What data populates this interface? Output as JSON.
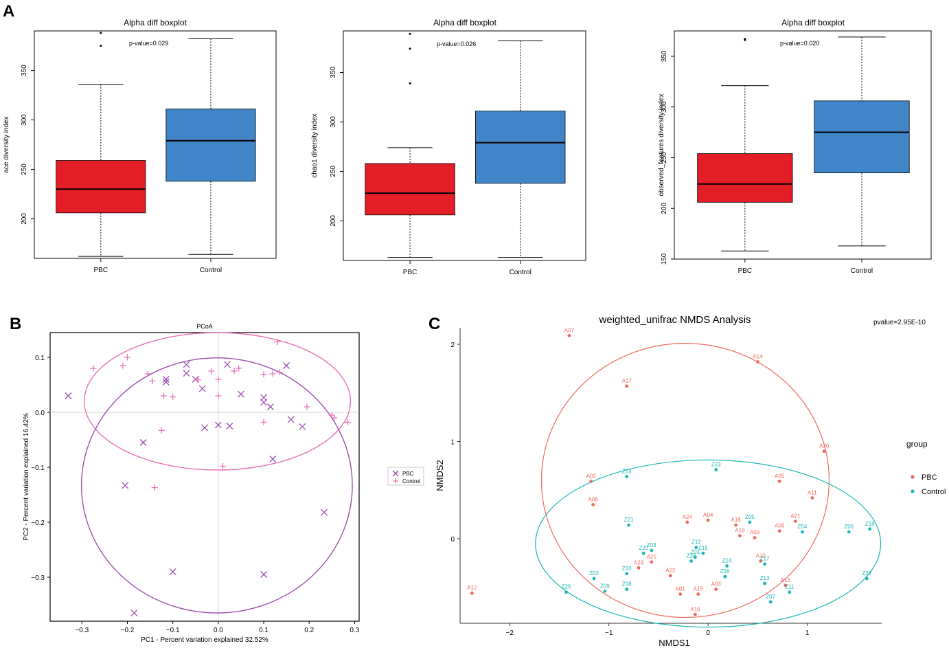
{
  "panel_labels": {
    "a": "A",
    "b": "B",
    "c": "C"
  },
  "chart_data": [
    {
      "type": "boxplot",
      "title": "Alpha diff boxplot",
      "ylabel": "ace  diversity index",
      "annotation": "p-value=0.029",
      "ylim": [
        160,
        390
      ],
      "yticks": [
        200,
        250,
        300,
        350
      ],
      "categories": [
        "PBC",
        "Control"
      ],
      "colors": [
        "#e41e26",
        "#3f85c8"
      ],
      "boxes": [
        {
          "group": "PBC",
          "min": 162,
          "q1": 206,
          "median": 230,
          "q3": 259,
          "max": 336,
          "outliers": [
            375,
            388
          ]
        },
        {
          "group": "Control",
          "min": 164,
          "q1": 238,
          "median": 279,
          "q3": 311,
          "max": 382,
          "outliers": []
        }
      ]
    },
    {
      "type": "boxplot",
      "title": "Alpha diff boxplot",
      "ylabel": "chao1  diversity index",
      "annotation": "p-value=0.026",
      "ylim": [
        160,
        392
      ],
      "yticks": [
        200,
        250,
        300,
        350
      ],
      "categories": [
        "PBC",
        "Control"
      ],
      "colors": [
        "#e41e26",
        "#3f85c8"
      ],
      "boxes": [
        {
          "group": "PBC",
          "min": 163,
          "q1": 206,
          "median": 228,
          "q3": 258,
          "max": 274,
          "outliers": [
            339,
            374,
            389
          ]
        },
        {
          "group": "Control",
          "min": 163,
          "q1": 238,
          "median": 279,
          "q3": 311,
          "max": 382,
          "outliers": []
        }
      ]
    },
    {
      "type": "boxplot",
      "title": "Alpha diff boxplot",
      "ylabel": "observed_features  diversity index",
      "annotation": "p-value=0.020",
      "ylim": [
        150,
        375
      ],
      "yticks": [
        150,
        200,
        250,
        300,
        350
      ],
      "categories": [
        "PBC",
        "Control"
      ],
      "colors": [
        "#e41e26",
        "#3f85c8"
      ],
      "boxes": [
        {
          "group": "PBC",
          "min": 158,
          "q1": 206,
          "median": 224,
          "q3": 254,
          "max": 321,
          "outliers": [
            366,
            367
          ]
        },
        {
          "group": "Control",
          "min": 163,
          "q1": 235,
          "median": 275,
          "q3": 306,
          "max": 369,
          "outliers": []
        }
      ]
    },
    {
      "type": "scatter",
      "title": "PCoA",
      "xlabel": "PC1 - Percent variation explained 32.52%",
      "ylabel": "PC2 - Percent variation explained 16.42%",
      "xlim": [
        -0.37,
        0.31
      ],
      "ylim": [
        -0.38,
        0.145
      ],
      "xticks": [
        -0.3,
        -0.2,
        -0.1,
        0.0,
        0.1,
        0.2,
        0.3
      ],
      "yticks": [
        0.1,
        0.0,
        -0.1,
        -0.2,
        -0.3
      ],
      "xtick_labels": [
        "−0.3",
        "−0.2",
        "−0.1",
        "0.0",
        "0.1",
        "0.2",
        "0.3"
      ],
      "ytick_labels": [
        "0.1",
        "0.0",
        "−0.1",
        "−0.2",
        "−0.3"
      ],
      "legend": [
        {
          "name": "PBC",
          "color": "#9b4fb0",
          "marker": "x"
        },
        {
          "name": "Control",
          "color": "#e86fb8",
          "marker": "+"
        }
      ],
      "series": [
        {
          "name": "PBC",
          "color": "#9b4fb0",
          "marker": "x",
          "ellipse": {
            "cx": -0.003,
            "cy": -0.133,
            "rx": 0.298,
            "ry": 0.232
          },
          "points": [
            [
              -0.33,
              0.03
            ],
            [
              -0.115,
              0.06
            ],
            [
              -0.115,
              0.055
            ],
            [
              -0.07,
              0.087
            ],
            [
              -0.07,
              0.071
            ],
            [
              -0.05,
              0.06
            ],
            [
              -0.035,
              0.043
            ],
            [
              -0.03,
              -0.028
            ],
            [
              0.02,
              0.087
            ],
            [
              0.05,
              0.033
            ],
            [
              0.1,
              0.027
            ],
            [
              0.1,
              0.018
            ],
            [
              0.115,
              0.01
            ],
            [
              0.15,
              0.085
            ],
            [
              0.16,
              -0.013
            ],
            [
              0.185,
              -0.026
            ],
            [
              0.0,
              -0.023
            ],
            [
              0.025,
              -0.025
            ],
            [
              -0.165,
              -0.055
            ],
            [
              -0.205,
              -0.133
            ],
            [
              0.12,
              -0.085
            ],
            [
              0.233,
              -0.182
            ],
            [
              -0.1,
              -0.29
            ],
            [
              0.1,
              -0.295
            ],
            [
              -0.185,
              -0.365
            ]
          ]
        },
        {
          "name": "Control",
          "color": "#e86fb8",
          "marker": "+",
          "ellipse": {
            "cx": -0.002,
            "cy": 0.02,
            "rx": 0.293,
            "ry": 0.125
          },
          "points": [
            [
              -0.275,
              0.08
            ],
            [
              -0.21,
              0.085
            ],
            [
              -0.2,
              0.1
            ],
            [
              -0.155,
              0.07
            ],
            [
              -0.145,
              0.057
            ],
            [
              -0.12,
              0.03
            ],
            [
              -0.1,
              0.028
            ],
            [
              -0.125,
              -0.033
            ],
            [
              -0.14,
              -0.137
            ],
            [
              -0.045,
              0.059
            ],
            [
              -0.015,
              0.075
            ],
            [
              0.0,
              0.06
            ],
            [
              0.0,
              0.03
            ],
            [
              0.035,
              0.075
            ],
            [
              0.045,
              0.08
            ],
            [
              0.1,
              0.069
            ],
            [
              0.12,
              0.07
            ],
            [
              0.135,
              0.073
            ],
            [
              0.13,
              0.128
            ],
            [
              0.1,
              -0.018
            ],
            [
              0.195,
              0.01
            ],
            [
              0.25,
              -0.005
            ],
            [
              0.255,
              -0.01
            ],
            [
              0.285,
              -0.018
            ],
            [
              0.01,
              -0.098
            ]
          ]
        }
      ]
    },
    {
      "type": "scatter",
      "title": "weighted_unifrac NMDS Analysis",
      "annotation": "pvalue=2.95E-10",
      "xlabel": "NMDS1",
      "ylabel": "NMDS2",
      "xlim": [
        -2.5,
        1.75
      ],
      "ylim": [
        -0.87,
        2.17
      ],
      "xticks": [
        -2,
        -1,
        0,
        1
      ],
      "yticks": [
        0,
        1,
        2
      ],
      "xtick_labels": [
        "−2",
        "−1",
        "0",
        "1"
      ],
      "ytick_labels": [
        "0",
        "1",
        "2"
      ],
      "legend_title": "group",
      "series": [
        {
          "name": "PBC",
          "color": "#f0685c",
          "ellipse": {
            "cx": -0.23,
            "cy": 0.6,
            "rx": 1.45,
            "ry": 1.41
          },
          "points": [
            {
              "label": "A07",
              "x": -1.4,
              "y": 2.09
            },
            {
              "label": "A14",
              "x": 0.5,
              "y": 1.82
            },
            {
              "label": "A17",
              "x": -0.82,
              "y": 1.57
            },
            {
              "label": "A20",
              "x": 1.17,
              "y": 0.9
            },
            {
              "label": "A02",
              "x": -1.18,
              "y": 0.59
            },
            {
              "label": "A05",
              "x": 0.72,
              "y": 0.59
            },
            {
              "label": "A11",
              "x": 1.05,
              "y": 0.42
            },
            {
              "label": "A08",
              "x": -1.16,
              "y": 0.35
            },
            {
              "label": "A24",
              "x": -0.21,
              "y": 0.17
            },
            {
              "label": "A04",
              "x": 0.0,
              "y": 0.19
            },
            {
              "label": "A18",
              "x": 0.28,
              "y": 0.14
            },
            {
              "label": "A21",
              "x": 0.88,
              "y": 0.18
            },
            {
              "label": "A19",
              "x": 0.32,
              "y": 0.03
            },
            {
              "label": "A09",
              "x": 0.47,
              "y": 0.01
            },
            {
              "label": "A06",
              "x": 0.72,
              "y": 0.08
            },
            {
              "label": "A25",
              "x": -0.57,
              "y": -0.24
            },
            {
              "label": "A23",
              "x": -0.7,
              "y": -0.3
            },
            {
              "label": "A10",
              "x": 0.53,
              "y": -0.23
            },
            {
              "label": "A22",
              "x": -0.38,
              "y": -0.38
            },
            {
              "label": "A13",
              "x": 0.78,
              "y": -0.48
            },
            {
              "label": "A03",
              "x": 0.08,
              "y": -0.52
            },
            {
              "label": "A01",
              "x": -0.28,
              "y": -0.57
            },
            {
              "label": "A15",
              "x": -0.1,
              "y": -0.57
            },
            {
              "label": "A12",
              "x": -2.38,
              "y": -0.56
            },
            {
              "label": "A16",
              "x": -0.13,
              "y": -0.78
            }
          ]
        },
        {
          "name": "Control",
          "color": "#1ab6b5",
          "ellipse": {
            "cx": 0.0,
            "cy": -0.05,
            "rx": 1.74,
            "ry": 0.86
          },
          "points": [
            {
              "label": "Z23",
              "x": 0.08,
              "y": 0.71
            },
            {
              "label": "Z19",
              "x": -0.82,
              "y": 0.64
            },
            {
              "label": "Z21",
              "x": -0.8,
              "y": 0.14
            },
            {
              "label": "Z05",
              "x": 0.42,
              "y": 0.17
            },
            {
              "label": "Z04",
              "x": 0.95,
              "y": 0.07
            },
            {
              "label": "Z06",
              "x": 1.42,
              "y": 0.07
            },
            {
              "label": "Z18",
              "x": 1.63,
              "y": 0.1
            },
            {
              "label": "Z03",
              "x": -0.57,
              "y": -0.12
            },
            {
              "label": "Z20",
              "x": -0.65,
              "y": -0.15
            },
            {
              "label": "Z12",
              "x": -0.12,
              "y": -0.09
            },
            {
              "label": "Z15",
              "x": -0.05,
              "y": -0.15
            },
            {
              "label": "Z01",
              "x": -0.13,
              "y": -0.19
            },
            {
              "label": "Z24",
              "x": -0.17,
              "y": -0.23
            },
            {
              "label": "Z17",
              "x": 0.57,
              "y": -0.26
            },
            {
              "label": "Z14",
              "x": 0.19,
              "y": -0.28
            },
            {
              "label": "Z10",
              "x": -0.82,
              "y": -0.36
            },
            {
              "label": "Z16",
              "x": 0.17,
              "y": -0.39
            },
            {
              "label": "Z02",
              "x": -1.15,
              "y": -0.41
            },
            {
              "label": "Z22",
              "x": 1.6,
              "y": -0.41
            },
            {
              "label": "Z13",
              "x": 0.57,
              "y": -0.46
            },
            {
              "label": "Z08",
              "x": -0.82,
              "y": -0.52
            },
            {
              "label": "Z09",
              "x": -1.04,
              "y": -0.54
            },
            {
              "label": "Z25",
              "x": -1.43,
              "y": -0.55
            },
            {
              "label": "Z11",
              "x": 0.82,
              "y": -0.55
            },
            {
              "label": "Z07",
              "x": 0.63,
              "y": -0.65
            }
          ]
        }
      ]
    }
  ]
}
